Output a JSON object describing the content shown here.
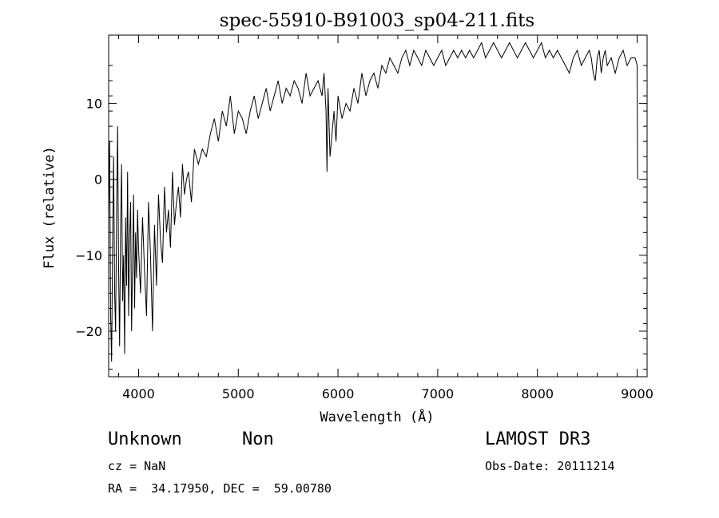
{
  "chart_data": {
    "type": "line",
    "title": "spec-55910-B91003_sp04-211.fits",
    "xlabel": "Wavelength (Å)",
    "ylabel": "Flux (relative)",
    "xlim": [
      3700,
      9100
    ],
    "ylim": [
      -26,
      19
    ],
    "xticks": [
      4000,
      5000,
      6000,
      7000,
      8000,
      9000
    ],
    "yticks": [
      -20,
      -10,
      0,
      10
    ],
    "grid": false,
    "series": [
      {
        "x": [
          3700,
          3710,
          3720,
          3730,
          3740,
          3750,
          3760,
          3770,
          3780,
          3790,
          3800,
          3810,
          3820,
          3830,
          3840,
          3850,
          3860,
          3870,
          3880,
          3890,
          3900,
          3910,
          3920,
          3930,
          3940,
          3950,
          3960,
          3970,
          3980,
          3990,
          4000,
          4020,
          4040,
          4060,
          4080,
          4100,
          4120,
          4140,
          4160,
          4180,
          4200,
          4220,
          4240,
          4260,
          4280,
          4300,
          4320,
          4340,
          4360,
          4380,
          4400,
          4420,
          4440,
          4460,
          4480,
          4500,
          4530,
          4560,
          4600,
          4640,
          4680,
          4720,
          4760,
          4800,
          4840,
          4880,
          4920,
          4960,
          5000,
          5040,
          5080,
          5120,
          5160,
          5200,
          5240,
          5280,
          5320,
          5360,
          5400,
          5440,
          5480,
          5520,
          5560,
          5600,
          5640,
          5680,
          5720,
          5760,
          5800,
          5840,
          5860,
          5880,
          5890,
          5900,
          5920,
          5940,
          5960,
          5980,
          6000,
          6040,
          6080,
          6120,
          6160,
          6200,
          6240,
          6280,
          6320,
          6360,
          6400,
          6440,
          6480,
          6520,
          6560,
          6600,
          6640,
          6680,
          6720,
          6760,
          6800,
          6840,
          6880,
          6920,
          6960,
          7000,
          7040,
          7080,
          7120,
          7160,
          7200,
          7240,
          7280,
          7320,
          7360,
          7400,
          7440,
          7480,
          7520,
          7560,
          7600,
          7640,
          7680,
          7720,
          7760,
          7800,
          7840,
          7880,
          7920,
          7960,
          8000,
          8040,
          8080,
          8120,
          8160,
          8200,
          8240,
          8280,
          8320,
          8360,
          8400,
          8440,
          8480,
          8520,
          8540,
          8560,
          8580,
          8600,
          8620,
          8640,
          8660,
          8680,
          8700,
          8740,
          8780,
          8820,
          8860,
          8900,
          8940,
          8980,
          9000,
          9005
        ],
        "y": [
          -5,
          5,
          -18,
          -24,
          -8,
          3,
          -15,
          -20,
          -4,
          7,
          -12,
          -22,
          -6,
          2,
          -16,
          -10,
          -23,
          -5,
          -14,
          1,
          -18,
          -8,
          -3,
          -20,
          -11,
          -2,
          -17,
          -7,
          -13,
          -4,
          -9,
          -15,
          -5,
          -12,
          -18,
          -3,
          -10,
          -20,
          -6,
          -14,
          -2,
          -8,
          -11,
          -1,
          -7,
          -4,
          -9,
          1,
          -6,
          -3,
          -1,
          -5,
          2,
          -2,
          0,
          1,
          -3,
          4,
          2,
          4,
          3,
          6,
          8,
          5,
          9,
          7,
          11,
          6,
          9,
          8,
          6,
          9,
          11,
          8,
          10,
          12,
          9,
          11,
          13,
          10,
          12,
          11,
          13,
          12,
          10,
          14,
          11,
          12,
          13,
          11,
          14,
          9,
          1,
          12,
          3,
          6,
          9,
          5,
          11,
          8,
          10,
          9,
          12,
          10,
          14,
          11,
          13,
          14,
          12,
          15,
          14,
          16,
          15,
          14,
          16,
          17,
          15,
          17,
          16,
          15,
          17,
          16,
          15,
          16,
          17,
          15,
          16,
          17,
          16,
          17,
          16,
          17,
          16,
          17,
          18,
          16,
          17,
          18,
          17,
          16,
          17,
          18,
          17,
          16,
          17,
          18,
          17,
          16,
          17,
          18,
          16,
          17,
          16,
          17,
          16,
          15,
          14,
          16,
          17,
          15,
          16,
          17,
          16,
          14,
          13,
          16,
          17,
          14,
          16,
          17,
          15,
          16,
          14,
          16,
          17,
          15,
          16,
          16,
          15,
          0
        ]
      }
    ]
  },
  "info": {
    "class": "Unknown",
    "subclass": "Non",
    "survey": "LAMOST DR3",
    "cz": "cz = NaN",
    "obsdate": "Obs-Date: 20111214",
    "radec": "RA =  34.17950, DEC =  59.00780"
  }
}
